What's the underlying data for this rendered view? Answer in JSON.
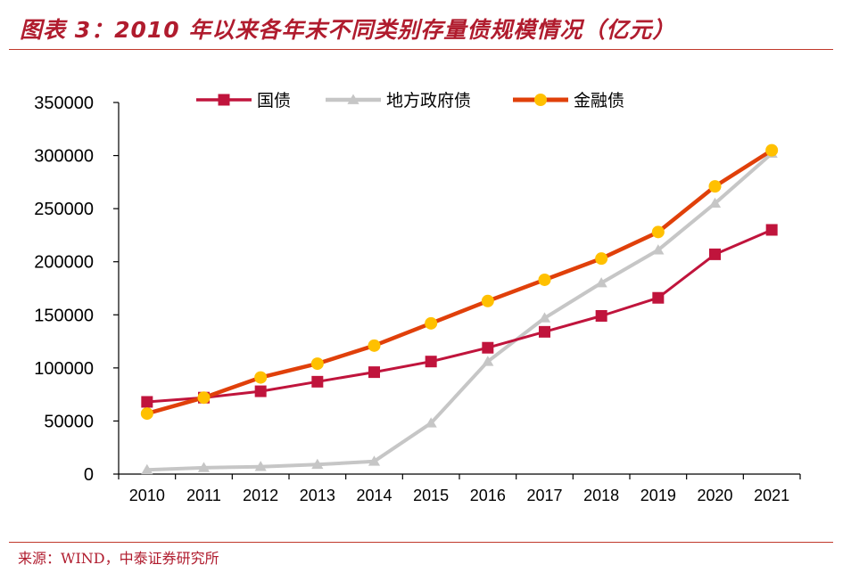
{
  "header": {
    "title": "图表 3：2010 年以来各年末不同类别存量债规模情况（亿元）"
  },
  "footer": {
    "source": "来源：WIND，中泰证券研究所"
  },
  "colors": {
    "guozhai": "#c0143c",
    "difang": "#c6c6c6",
    "jinrong_line": "#e0400a",
    "jinrong_marker": "#ffc000",
    "accent": "#b01c2e"
  },
  "chart_data": {
    "type": "line",
    "title": "2010 年以来各年末不同类别存量债规模情况（亿元）",
    "xlabel": "",
    "ylabel": "",
    "categories": [
      "2010",
      "2011",
      "2012",
      "2013",
      "2014",
      "2015",
      "2016",
      "2017",
      "2018",
      "2019",
      "2020",
      "2021"
    ],
    "ylim": [
      0,
      350000
    ],
    "yticks": [
      0,
      50000,
      100000,
      150000,
      200000,
      250000,
      300000,
      350000
    ],
    "yticklabels": [
      "0",
      "50000",
      "100000",
      "150000",
      "200000",
      "250000",
      "300000",
      "350000"
    ],
    "legend_position": "top",
    "grid": false,
    "series": [
      {
        "name": "国债",
        "marker": "square",
        "color": "#c0143c",
        "values": [
          68000,
          72000,
          78000,
          87000,
          96000,
          106000,
          119000,
          134000,
          149000,
          166000,
          207000,
          230000
        ]
      },
      {
        "name": "地方政府债",
        "marker": "triangle",
        "color": "#c6c6c6",
        "values": [
          4000,
          6000,
          7000,
          9000,
          12000,
          48000,
          106000,
          147000,
          180000,
          211000,
          255000,
          302000
        ]
      },
      {
        "name": "金融债",
        "marker": "circle",
        "color": "#e0400a",
        "marker_color": "#ffc000",
        "values": [
          57000,
          72000,
          91000,
          104000,
          121000,
          142000,
          163000,
          183000,
          203000,
          228000,
          271000,
          305000
        ]
      }
    ]
  }
}
